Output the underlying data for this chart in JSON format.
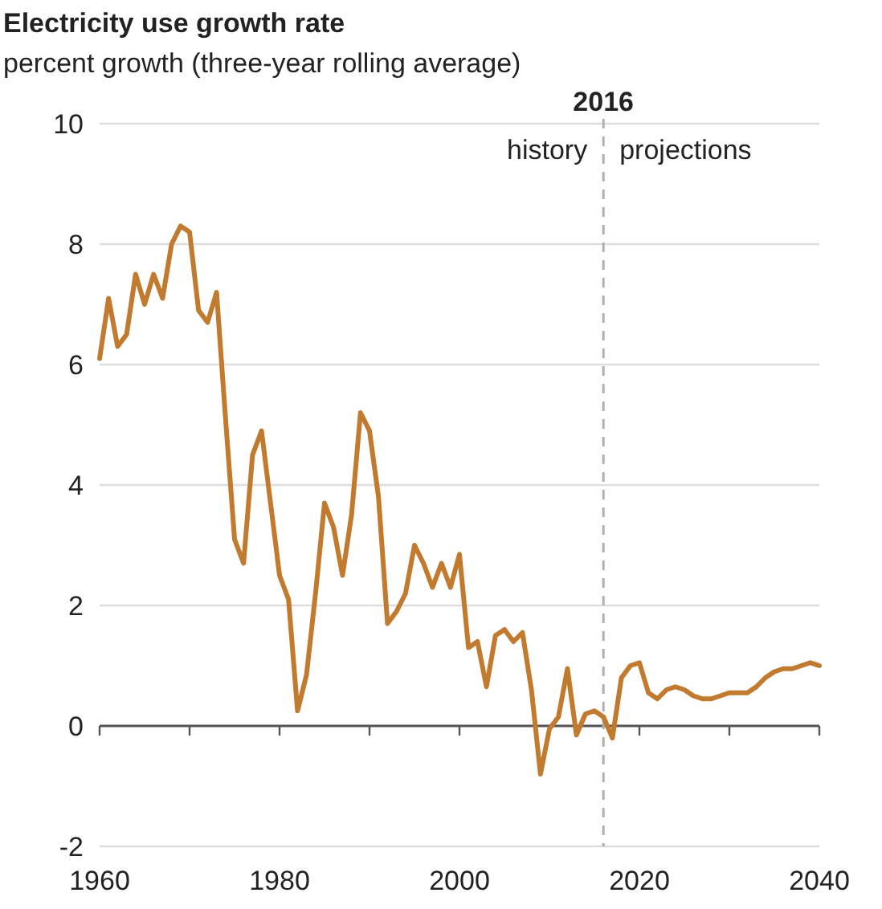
{
  "chart_data": {
    "type": "line",
    "title": "Electricity use growth rate",
    "subtitle": "percent growth (three-year rolling average)",
    "x": [
      1960,
      1961,
      1962,
      1963,
      1964,
      1965,
      1966,
      1967,
      1968,
      1969,
      1970,
      1971,
      1972,
      1973,
      1974,
      1975,
      1976,
      1977,
      1978,
      1979,
      1980,
      1981,
      1982,
      1983,
      1984,
      1985,
      1986,
      1987,
      1988,
      1989,
      1990,
      1991,
      1992,
      1993,
      1994,
      1995,
      1996,
      1997,
      1998,
      1999,
      2000,
      2001,
      2002,
      2003,
      2004,
      2005,
      2006,
      2007,
      2008,
      2009,
      2010,
      2011,
      2012,
      2013,
      2014,
      2015,
      2016,
      2017,
      2018,
      2019,
      2020,
      2021,
      2022,
      2023,
      2024,
      2025,
      2026,
      2027,
      2028,
      2029,
      2030,
      2031,
      2032,
      2033,
      2034,
      2035,
      2036,
      2037,
      2038,
      2039,
      2040
    ],
    "series": [
      {
        "color": "#c17a2e",
        "values": [
          6.1,
          7.1,
          6.3,
          6.5,
          7.5,
          7.0,
          7.5,
          7.1,
          8.0,
          8.3,
          8.2,
          6.9,
          6.7,
          7.2,
          5.1,
          3.1,
          2.7,
          4.5,
          4.9,
          3.7,
          2.5,
          2.1,
          0.25,
          0.85,
          2.2,
          3.7,
          3.3,
          2.5,
          3.5,
          5.2,
          4.9,
          3.8,
          1.7,
          1.9,
          2.2,
          3.0,
          2.7,
          2.3,
          2.7,
          2.3,
          2.85,
          1.3,
          1.4,
          0.65,
          1.5,
          1.6,
          1.4,
          1.55,
          0.6,
          -0.8,
          -0.05,
          0.15,
          0.95,
          -0.15,
          0.2,
          0.25,
          0.15,
          -0.2,
          0.8,
          1.0,
          1.05,
          0.55,
          0.45,
          0.6,
          0.65,
          0.6,
          0.5,
          0.45,
          0.45,
          0.5,
          0.55,
          0.55,
          0.55,
          0.65,
          0.8,
          0.9,
          0.95,
          0.95,
          1.0,
          1.05,
          1.0
        ]
      }
    ],
    "xlim": [
      1960,
      2040
    ],
    "xticks": [
      1960,
      {
        "value": 1970,
        "label": null
      },
      1980,
      {
        "value": 1990,
        "label": null
      },
      2000,
      {
        "value": 2010,
        "label": null
      },
      2020,
      {
        "value": 2030,
        "label": null
      },
      2040
    ],
    "ylim": [
      -2,
      10
    ],
    "yticks": [
      -2,
      0,
      2,
      4,
      6,
      8,
      10
    ],
    "grid": "y",
    "marker": "none",
    "line_style": "solid",
    "ref_lines": [
      {
        "axis": "x",
        "value": 2016,
        "label": "2016",
        "color": "#b0b0b0",
        "line_style": "dashed"
      }
    ],
    "annotations": [
      "history",
      "projections"
    ]
  }
}
